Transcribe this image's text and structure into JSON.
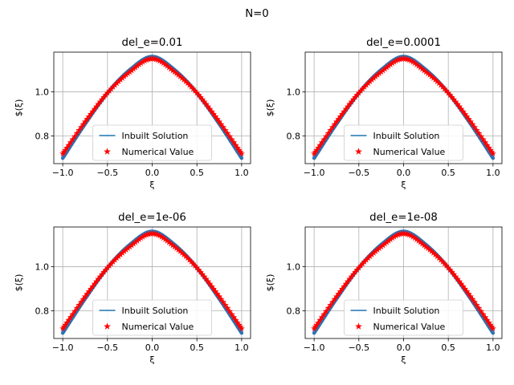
{
  "figure": {
    "suptitle": "N=0",
    "colors": {
      "line": "#1f77b4",
      "marker": "#ff0000",
      "grid": "#b0b0b0",
      "legend_edge": "#cccccc"
    }
  },
  "chart_data": [
    {
      "type": "line",
      "title": "del_e=0.01",
      "xlabel": "ξ",
      "ylabel": "$(ξ)",
      "xlim": [
        -1.1,
        1.1
      ],
      "ylim": [
        0.675,
        1.18
      ],
      "xticks": [
        -1.0,
        -0.5,
        0.0,
        0.5,
        1.0
      ],
      "xtick_labels": [
        "−1.0",
        "−0.5",
        "0.0",
        "0.5",
        "1.0"
      ],
      "yticks": [
        0.8,
        1.0
      ],
      "ytick_labels": [
        "0.8",
        "1.0"
      ],
      "grid": true,
      "legend": {
        "placement": "lower center",
        "entries": [
          "Inbuilt Solution",
          "Numerical Value"
        ]
      },
      "series": [
        {
          "name": "Inbuilt Solution",
          "kind": "line",
          "x": [
            -1.0,
            -0.75,
            -0.5,
            -0.25,
            0.0,
            0.25,
            0.5,
            0.75,
            1.0
          ],
          "y": [
            0.7,
            0.855,
            0.995,
            1.1,
            1.16,
            1.1,
            0.995,
            0.855,
            0.7
          ]
        },
        {
          "name": "Numerical Value",
          "kind": "scatter",
          "marker": "star",
          "x": [
            -1.0,
            -0.75,
            -0.5,
            -0.25,
            0.0,
            0.25,
            0.5,
            0.75,
            1.0
          ],
          "y": [
            0.72,
            0.865,
            0.995,
            1.09,
            1.15,
            1.09,
            0.995,
            0.865,
            0.72
          ]
        }
      ]
    },
    {
      "type": "line",
      "title": "del_e=0.0001",
      "xlabel": "ξ",
      "ylabel": "$(ξ)",
      "xlim": [
        -1.1,
        1.1
      ],
      "ylim": [
        0.675,
        1.18
      ],
      "xticks": [
        -1.0,
        -0.5,
        0.0,
        0.5,
        1.0
      ],
      "xtick_labels": [
        "−1.0",
        "−0.5",
        "0.0",
        "0.5",
        "1.0"
      ],
      "yticks": [
        0.8,
        1.0
      ],
      "ytick_labels": [
        "0.8",
        "1.0"
      ],
      "grid": true,
      "legend": {
        "placement": "lower center",
        "entries": [
          "Inbuilt Solution",
          "Numerical Value"
        ]
      },
      "series": [
        {
          "name": "Inbuilt Solution",
          "kind": "line",
          "x": [
            -1.0,
            -0.75,
            -0.5,
            -0.25,
            0.0,
            0.25,
            0.5,
            0.75,
            1.0
          ],
          "y": [
            0.7,
            0.855,
            0.995,
            1.1,
            1.16,
            1.1,
            0.995,
            0.855,
            0.7
          ]
        },
        {
          "name": "Numerical Value",
          "kind": "scatter",
          "marker": "star",
          "x": [
            -1.0,
            -0.75,
            -0.5,
            -0.25,
            0.0,
            0.25,
            0.5,
            0.75,
            1.0
          ],
          "y": [
            0.72,
            0.865,
            0.995,
            1.09,
            1.15,
            1.09,
            0.995,
            0.865,
            0.72
          ]
        }
      ]
    },
    {
      "type": "line",
      "title": "del_e=1e-06",
      "xlabel": "ξ",
      "ylabel": "$(ξ)",
      "xlim": [
        -1.1,
        1.1
      ],
      "ylim": [
        0.675,
        1.18
      ],
      "xticks": [
        -1.0,
        -0.5,
        0.0,
        0.5,
        1.0
      ],
      "xtick_labels": [
        "−1.0",
        "−0.5",
        "0.0",
        "0.5",
        "1.0"
      ],
      "yticks": [
        0.8,
        1.0
      ],
      "ytick_labels": [
        "0.8",
        "1.0"
      ],
      "grid": true,
      "legend": {
        "placement": "lower center",
        "entries": [
          "Inbuilt Solution",
          "Numerical Value"
        ]
      },
      "series": [
        {
          "name": "Inbuilt Solution",
          "kind": "line",
          "x": [
            -1.0,
            -0.75,
            -0.5,
            -0.25,
            0.0,
            0.25,
            0.5,
            0.75,
            1.0
          ],
          "y": [
            0.7,
            0.855,
            0.995,
            1.1,
            1.16,
            1.1,
            0.995,
            0.855,
            0.7
          ]
        },
        {
          "name": "Numerical Value",
          "kind": "scatter",
          "marker": "star",
          "x": [
            -1.0,
            -0.75,
            -0.5,
            -0.25,
            0.0,
            0.25,
            0.5,
            0.75,
            1.0
          ],
          "y": [
            0.72,
            0.865,
            0.995,
            1.09,
            1.15,
            1.09,
            0.995,
            0.865,
            0.72
          ]
        }
      ]
    },
    {
      "type": "line",
      "title": "del_e=1e-08",
      "xlabel": "ξ",
      "ylabel": "$(ξ)",
      "xlim": [
        -1.1,
        1.1
      ],
      "ylim": [
        0.675,
        1.18
      ],
      "xticks": [
        -1.0,
        -0.5,
        0.0,
        0.5,
        1.0
      ],
      "xtick_labels": [
        "−1.0",
        "−0.5",
        "0.0",
        "0.5",
        "1.0"
      ],
      "yticks": [
        0.8,
        1.0
      ],
      "ytick_labels": [
        "0.8",
        "1.0"
      ],
      "grid": true,
      "legend": {
        "placement": "lower center",
        "entries": [
          "Inbuilt Solution",
          "Numerical Value"
        ]
      },
      "series": [
        {
          "name": "Inbuilt Solution",
          "kind": "line",
          "x": [
            -1.0,
            -0.75,
            -0.5,
            -0.25,
            0.0,
            0.25,
            0.5,
            0.75,
            1.0
          ],
          "y": [
            0.7,
            0.855,
            0.995,
            1.1,
            1.16,
            1.1,
            0.995,
            0.855,
            0.7
          ]
        },
        {
          "name": "Numerical Value",
          "kind": "scatter",
          "marker": "star",
          "x": [
            -1.0,
            -0.75,
            -0.5,
            -0.25,
            0.0,
            0.25,
            0.5,
            0.75,
            1.0
          ],
          "y": [
            0.72,
            0.865,
            0.995,
            1.09,
            1.15,
            1.09,
            0.995,
            0.865,
            0.72
          ]
        }
      ]
    }
  ]
}
